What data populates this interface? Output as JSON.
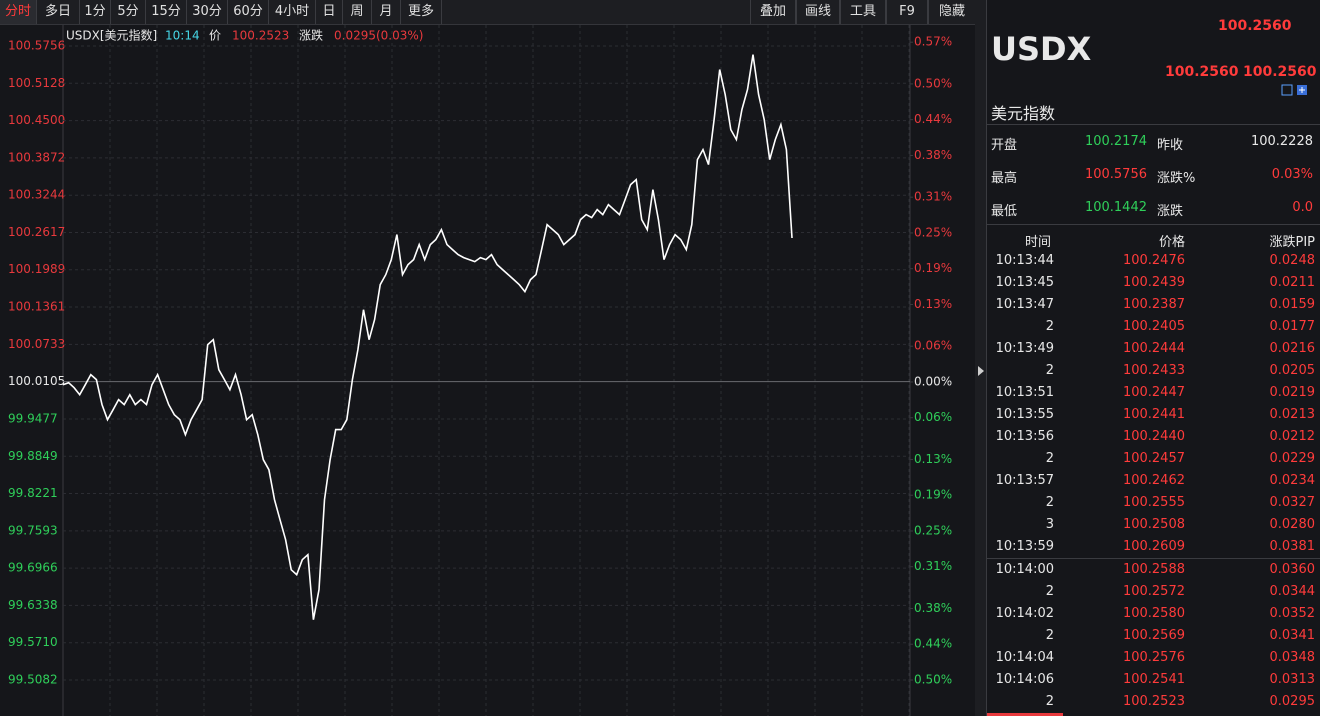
{
  "toolbar": {
    "periods": [
      "分时",
      "多日",
      "1分",
      "5分",
      "15分",
      "30分",
      "60分",
      "4小时",
      "日",
      "周",
      "月",
      "更多"
    ],
    "tools": [
      "叠加",
      "画线",
      "工具",
      "F9",
      "隐藏"
    ]
  },
  "chart_data": {
    "type": "line",
    "info": {
      "symbol": "USDX[美元指数]",
      "time": "10:14",
      "price_label": "价",
      "price": "100.2523",
      "change_label": "涨跌",
      "change": "0.0295(0.03%)"
    },
    "color": "#ffffff",
    "up_color": "#e8393d",
    "down_color": "#2fcf5a",
    "flat_color": "#e8e8e8",
    "grid": true,
    "ylim": [
      99.4476,
      100.6059
    ],
    "yticks": [
      100.5756,
      100.5128,
      {
        "value": 100.45,
        "label": "100.4500"
      },
      100.3872,
      100.3244,
      100.2617,
      100.1989,
      100.1361,
      100.0733,
      100.0105,
      99.9477,
      99.8849,
      99.8221,
      99.7593,
      99.6966,
      99.6338,
      {
        "value": 99.571,
        "label": "99.5710"
      },
      99.5082
    ],
    "y2lim": [
      -0.5604,
      0.5938
    ],
    "y2ticks": [
      {
        "value": 0.57,
        "label": "0.57%"
      },
      {
        "value": 0.5,
        "label": "0.50%"
      },
      {
        "value": 0.44,
        "label": "0.44%"
      },
      {
        "value": 0.38,
        "label": "0.38%"
      },
      {
        "value": 0.31,
        "label": "0.31%"
      },
      {
        "value": 0.25,
        "label": "0.25%"
      },
      {
        "value": 0.19,
        "label": "0.19%"
      },
      {
        "value": 0.13,
        "label": "0.13%"
      },
      {
        "value": 0.06,
        "label": "0.06%"
      },
      {
        "value": 0,
        "label": "0.00%"
      },
      {
        "value": -0.06,
        "label": "0.06%"
      },
      {
        "value": -0.13,
        "label": "0.13%"
      },
      {
        "value": -0.19,
        "label": "0.19%"
      },
      {
        "value": -0.25,
        "label": "0.25%"
      },
      {
        "value": -0.31,
        "label": "0.31%"
      },
      {
        "value": -0.38,
        "label": "0.38%"
      },
      {
        "value": -0.44,
        "label": "0.44%"
      },
      {
        "value": -0.5,
        "label": "0.50%"
      }
    ],
    "values": [
      100.0054,
      100.0088,
      100.0004,
      99.9886,
      100.0054,
      100.0223,
      100.0139,
      99.9718,
      99.9465,
      99.9633,
      99.9802,
      99.9718,
      99.9886,
      99.9718,
      99.9802,
      99.9718,
      100.0054,
      100.0223,
      99.997,
      99.9718,
      99.9549,
      99.9465,
      99.9212,
      99.9465,
      99.9633,
      99.9802,
      100.0728,
      100.0812,
      100.0307,
      100.0139,
      99.997,
      100.0223,
      99.9886,
      99.9465,
      99.9549,
      99.9212,
      99.8791,
      99.8623,
      99.8118,
      99.7781,
      99.7444,
      99.6939,
      99.6855,
      99.7107,
      99.7192,
      99.6097,
      99.6602,
      99.8118,
      99.8791,
      99.9297,
      99.9297,
      99.9465,
      100.0139,
      100.0644,
      100.1317,
      100.0812,
      100.1149,
      100.1738,
      100.1907,
      100.2159,
      100.258,
      100.1907,
      100.2075,
      100.2159,
      100.2412,
      100.2159,
      100.2412,
      100.2496,
      100.2665,
      100.2412,
      100.2328,
      100.2244,
      100.2193,
      100.2159,
      100.2126,
      100.2193,
      100.2159,
      100.2244,
      100.2075,
      100.1991,
      100.1907,
      100.1823,
      100.1738,
      100.1621,
      100.1823,
      100.1907,
      100.2328,
      100.2749,
      100.2665,
      100.258,
      100.2412,
      100.2496,
      100.258,
      100.2833,
      100.2917,
      100.2867,
      100.3001,
      100.2917,
      100.3086,
      100.3001,
      100.2917,
      100.317,
      100.3422,
      100.3507,
      100.2833,
      100.2665,
      100.3338,
      100.2833,
      100.2159,
      100.2412,
      100.258,
      100.2496,
      100.2328,
      100.2749,
      100.3843,
      100.4012,
      100.3759,
      100.4517,
      100.5359,
      100.4938,
      100.4349,
      100.418,
      100.4685,
      100.5022,
      100.5612,
      100.4938,
      100.4517,
      100.3843,
      100.418,
      100.4433,
      100.4012,
      100.2523
    ]
  },
  "panel": {
    "symbol": "USDX",
    "last": "100.2560",
    "bid": "100.2560",
    "ask": "100.2560",
    "name": "美元指数",
    "quote": [
      [
        "开盘",
        "100.2174",
        "昨收",
        "100.2228"
      ],
      [
        "最高",
        "100.5756",
        "涨跌%",
        "0.03%"
      ],
      [
        "最低",
        "100.1442",
        "涨跌",
        "0.0"
      ]
    ],
    "ticks_header": [
      "时间",
      "价格",
      "涨跌PIP"
    ],
    "ticks": [
      [
        "10:13:44",
        "100.2476",
        "0.0248"
      ],
      [
        "10:13:45",
        "100.2439",
        "0.0211"
      ],
      [
        "10:13:47",
        "100.2387",
        "0.0159"
      ],
      [
        "2",
        "100.2405",
        "0.0177"
      ],
      [
        "10:13:49",
        "100.2444",
        "0.0216"
      ],
      [
        "2",
        "100.2433",
        "0.0205"
      ],
      [
        "10:13:51",
        "100.2447",
        "0.0219"
      ],
      [
        "10:13:55",
        "100.2441",
        "0.0213"
      ],
      [
        "10:13:56",
        "100.2440",
        "0.0212"
      ],
      [
        "2",
        "100.2457",
        "0.0229"
      ],
      [
        "10:13:57",
        "100.2462",
        "0.0234"
      ],
      [
        "2",
        "100.2555",
        "0.0327"
      ],
      [
        "3",
        "100.2508",
        "0.0280"
      ],
      [
        "10:13:59",
        "100.2609",
        "0.0381"
      ],
      [
        "10:14:00",
        "100.2588",
        "0.0360"
      ],
      [
        "2",
        "100.2572",
        "0.0344"
      ],
      [
        "10:14:02",
        "100.2580",
        "0.0352"
      ],
      [
        "2",
        "100.2569",
        "0.0341"
      ],
      [
        "10:14:04",
        "100.2576",
        "0.0348"
      ],
      [
        "10:14:06",
        "100.2541",
        "0.0313"
      ],
      [
        "2",
        "100.2523",
        "0.0295"
      ]
    ]
  }
}
